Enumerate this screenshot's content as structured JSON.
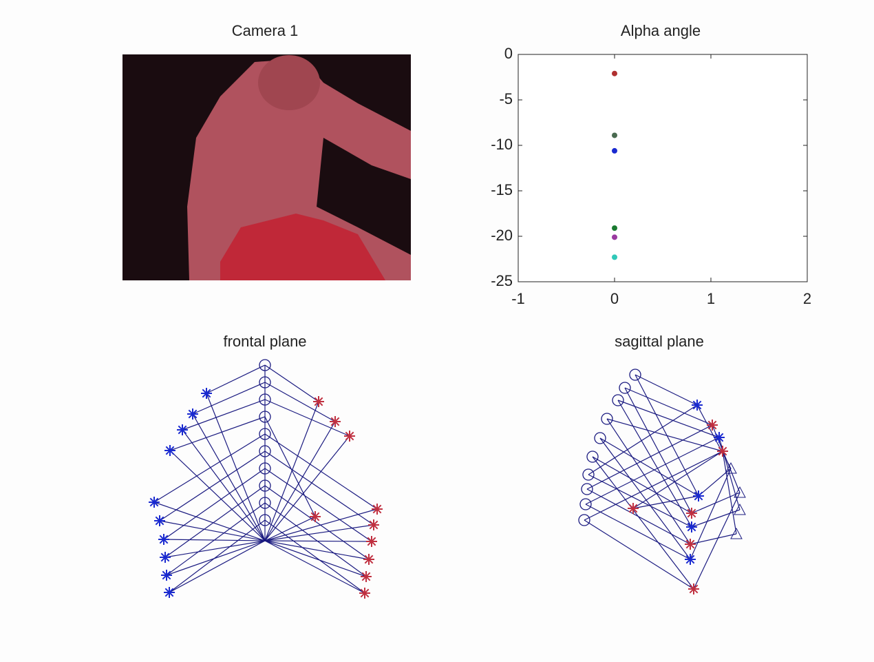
{
  "chart_data": [
    {
      "type": "image",
      "title": "Camera 1"
    },
    {
      "type": "scatter",
      "title": "Alpha angle",
      "x": [
        0,
        0,
        0,
        0,
        0,
        0
      ],
      "values": [
        -2.1,
        -8.9,
        -10.6,
        -19.1,
        -20.1,
        -22.3
      ],
      "colors": [
        "#b03030",
        "#4a6a50",
        "#1a2ad0",
        "#1a7a30",
        "#9a3aa0",
        "#30c8b8"
      ],
      "xlim": [
        -1,
        2
      ],
      "xticks": [
        -1,
        0,
        1,
        2
      ],
      "ylim": [
        -25,
        0
      ],
      "yticks": [
        -25,
        -20,
        -15,
        -10,
        -5,
        0
      ]
    },
    {
      "type": "stick",
      "title": "frontal plane"
    },
    {
      "type": "stick",
      "title": "sagittal plane"
    }
  ]
}
